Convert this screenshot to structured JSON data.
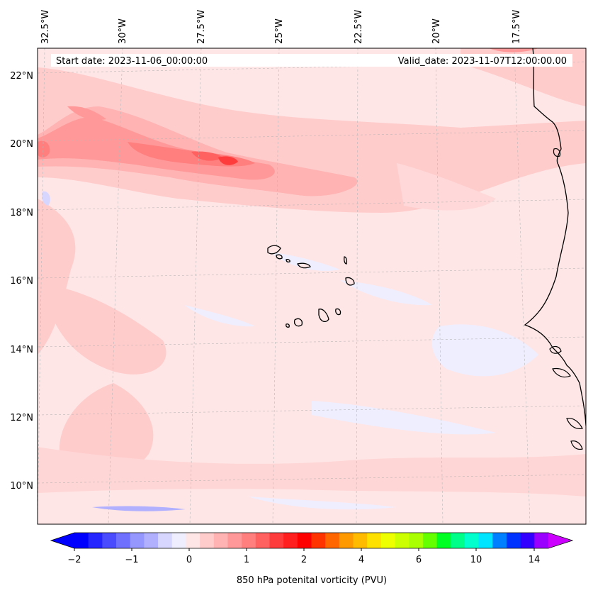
{
  "header": {
    "start_label": "Start date: 2023-11-06_00:00:00",
    "valid_label": "Valid_date: 2023-11-07T12:00:00.00"
  },
  "map": {
    "lon_labels": [
      "32.5°W",
      "30°W",
      "27.5°W",
      "25°W",
      "22.5°W",
      "20°W",
      "17.5°W"
    ],
    "lat_labels": [
      "22°N",
      "20°N",
      "18°N",
      "16°N",
      "14°N",
      "12°N",
      "10°N"
    ],
    "features": [
      "coastline-west-africa",
      "cape-verde-islands"
    ]
  },
  "colorbar": {
    "label": "850 hPa potenital vorticity (PVU)",
    "tick_labels": [
      "−2",
      "−1",
      "0",
      "1",
      "2",
      "4",
      "6",
      "10",
      "14"
    ],
    "colors": [
      "#0000ff",
      "#2525ff",
      "#4a4aff",
      "#7070ff",
      "#9696ff",
      "#b0b0ff",
      "#d6d6ff",
      "#eeeeff",
      "#ffe6e6",
      "#ffcccc",
      "#ffb3b3",
      "#ff9999",
      "#ff7f7f",
      "#ff6060",
      "#ff3c3c",
      "#ff1f1f",
      "#ff0000",
      "#ff3300",
      "#ff6600",
      "#ff9900",
      "#ffbb00",
      "#ffe100",
      "#eeff00",
      "#ccff00",
      "#aaff00",
      "#66ff00",
      "#00ff22",
      "#00ff88",
      "#00ffcc",
      "#00e5ff",
      "#0080ff",
      "#0033ff",
      "#3300ff",
      "#9900ff"
    ],
    "extend_min_color": "#0000ff",
    "extend_max_color": "#cc00ff"
  }
}
